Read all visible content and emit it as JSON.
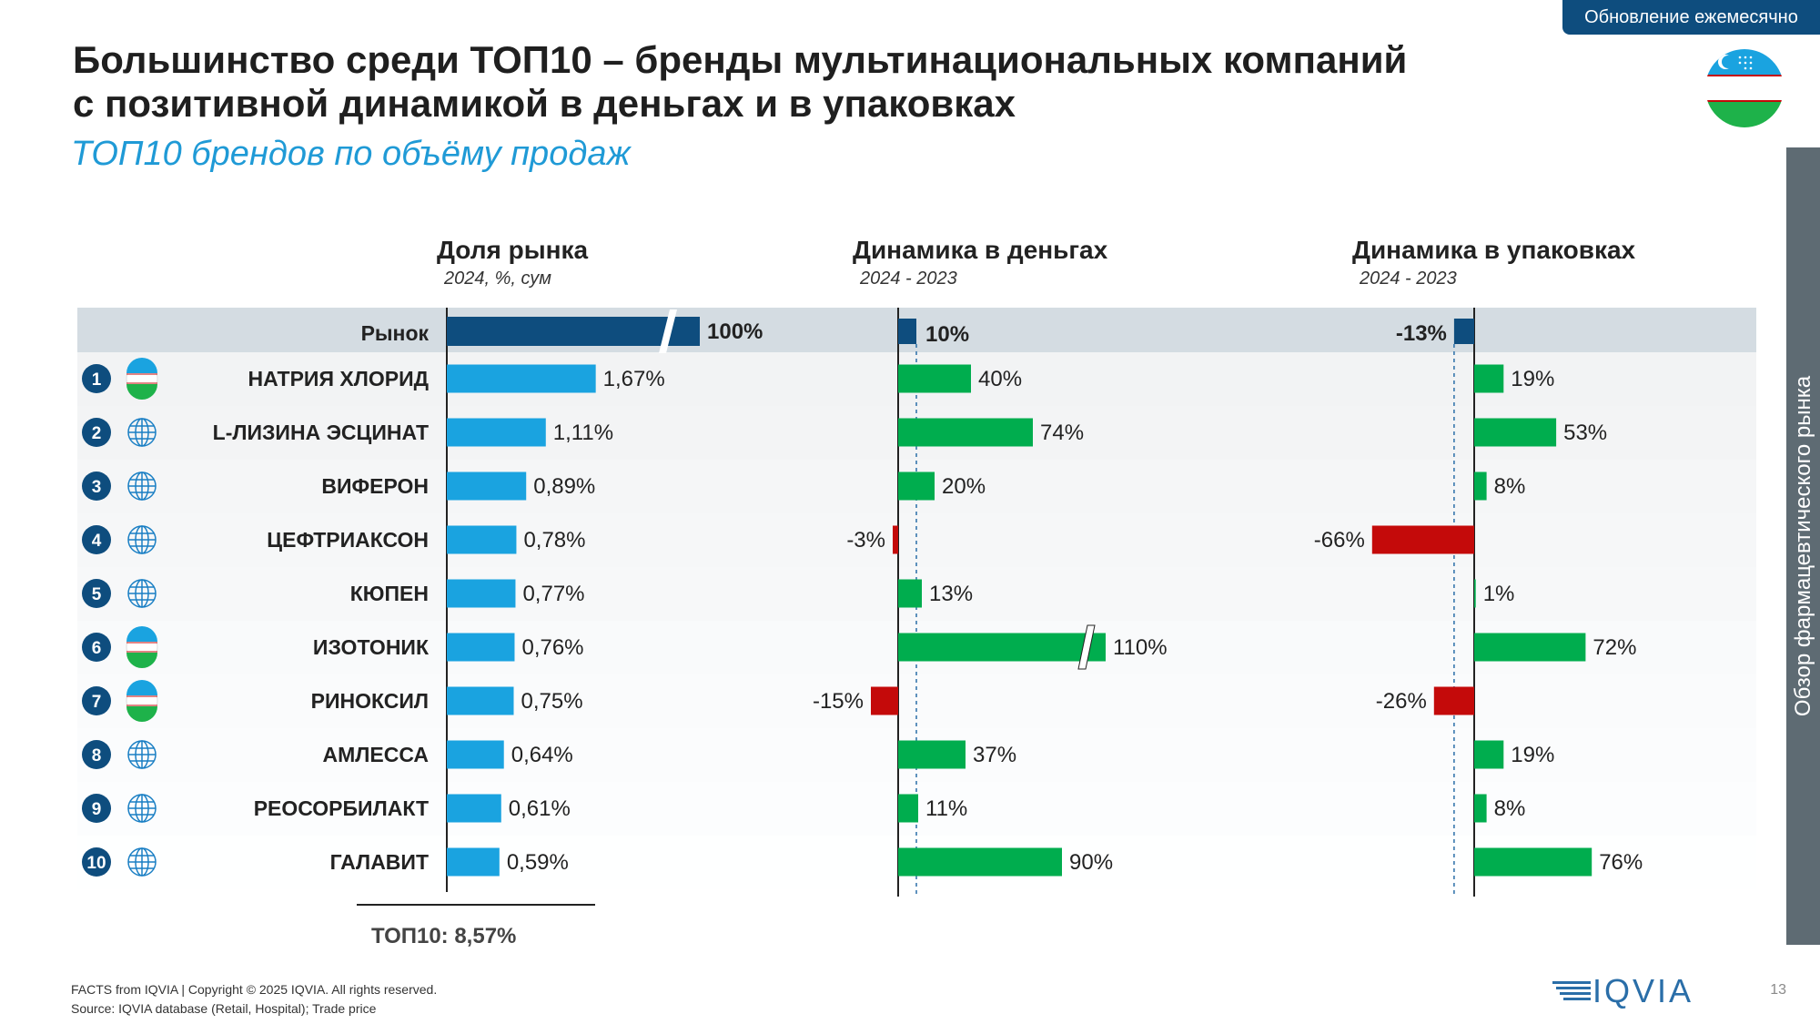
{
  "badge": "Обновление ежемесячно",
  "title_line1": "Большинство среди ТОП10 – бренды мультинациональных компаний",
  "title_line2": "с позитивной динамикой в деньгах и в упаковках",
  "subtitle": "ТОП10 брендов по объёму продаж",
  "side_tab": "Обзор фармацевтического рынка",
  "footer_copyright": "FACTS from IQVIA | Copyright © 2025 IQVIA. All rights reserved.",
  "footer_source": "Source: IQVIA database (Retail, Hospital); Trade price",
  "page_number": "13",
  "logo_text": "IQVIA",
  "colors": {
    "market_bar": "#0e4d7e",
    "share_bar": "#1aa3e0",
    "positive": "#00ad4e",
    "negative": "#c40a0a",
    "market_row_bg": "#d4dce2"
  },
  "chart_data": {
    "type": "bar",
    "panels": [
      {
        "title": "Доля рынка",
        "subtitle": "2024, %, сум"
      },
      {
        "title": "Динамика в деньгах",
        "subtitle": "2024 -  2023"
      },
      {
        "title": "Динамика в упаковках",
        "subtitle": "2024 -  2023"
      }
    ],
    "market": {
      "label": "Рынок",
      "share": 100,
      "share_label": "100%",
      "money": 10,
      "money_label": "10%",
      "units": -13,
      "units_label": "-13%"
    },
    "categories": [
      "НАТРИЯ ХЛОРИД",
      "L-ЛИЗИНА ЭСЦИНАТ",
      "ВИФЕРОН",
      "ЦЕФТРИАКСОН",
      "КЮПЕН",
      "ИЗОТОНИК",
      "РИНОКСИЛ",
      "АМЛЕССА",
      "РЕОСОРБИЛАКТ",
      "ГАЛАВИТ"
    ],
    "ranks": [
      "1",
      "2",
      "3",
      "4",
      "5",
      "6",
      "7",
      "8",
      "9",
      "10"
    ],
    "origin_icons": [
      "uzbek-flag-icon",
      "globe-icon",
      "globe-icon",
      "globe-icon",
      "globe-icon",
      "uzbek-flag-icon",
      "uzbek-flag-icon",
      "globe-icon",
      "globe-icon",
      "globe-icon"
    ],
    "series": [
      {
        "values": [
          1.67,
          1.11,
          0.89,
          0.78,
          0.77,
          0.76,
          0.75,
          0.64,
          0.61,
          0.59
        ],
        "labels": [
          "1,67%",
          "1,11%",
          "0,89%",
          "0,78%",
          "0,77%",
          "0,76%",
          "0,75%",
          "0,64%",
          "0,61%",
          "0,59%"
        ]
      },
      {
        "values": [
          40,
          74,
          20,
          -3,
          13,
          110,
          -15,
          37,
          11,
          90
        ],
        "labels": [
          "40%",
          "74%",
          "20%",
          "-3%",
          "13%",
          "110%",
          "-15%",
          "37%",
          "11%",
          "90%"
        ]
      },
      {
        "values": [
          19,
          53,
          8,
          -66,
          1,
          72,
          -26,
          19,
          8,
          76
        ],
        "labels": [
          "19%",
          "53%",
          "8%",
          "-66%",
          "1%",
          "72%",
          "-26%",
          "19%",
          "8%",
          "76%"
        ]
      }
    ],
    "top10_total": "ТОП10: 8,57%"
  }
}
